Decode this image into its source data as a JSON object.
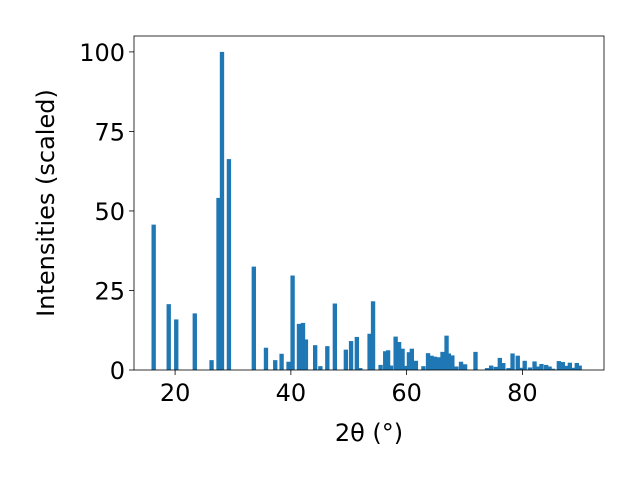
{
  "chart_data": {
    "type": "bar",
    "xlabel": "2θ (°)",
    "ylabel": "Intensities (scaled)",
    "xlim": [
      12.9,
      94.1
    ],
    "ylim": [
      0,
      105
    ],
    "xticks": [
      20,
      40,
      60,
      80
    ],
    "yticks": [
      0,
      25,
      50,
      75,
      100
    ],
    "grid": false,
    "bar_color": "#1f77b4",
    "bar_width": 0.75,
    "x": [
      16.3,
      18.9,
      20.2,
      23.4,
      26.3,
      27.5,
      28.1,
      29.3,
      33.6,
      35.7,
      37.3,
      38.4,
      39.6,
      40.3,
      41.4,
      42.1,
      42.6,
      44.2,
      45.1,
      46.3,
      47.6,
      49.5,
      50.4,
      51.4,
      52.0,
      53.6,
      54.2,
      55.5,
      56.3,
      56.8,
      57.3,
      58.1,
      58.7,
      59.3,
      59.8,
      60.4,
      60.9,
      61.6,
      62.9,
      63.7,
      64.3,
      64.9,
      65.6,
      66.2,
      66.9,
      67.3,
      67.9,
      68.6,
      69.4,
      70.1,
      71.9,
      73.9,
      74.6,
      75.4,
      76.1,
      76.7,
      77.6,
      78.3,
      79.2,
      79.7,
      80.4,
      81.3,
      82.1,
      82.6,
      83.3,
      84.1,
      84.7,
      85.3,
      86.3,
      87.0,
      87.6,
      88.2,
      88.8,
      89.4,
      89.9
    ],
    "values": [
      45.7,
      20.7,
      15.9,
      17.8,
      3.1,
      54.1,
      100,
      66.3,
      32.5,
      7.0,
      3.1,
      5.1,
      2.6,
      29.7,
      14.5,
      14.8,
      9.6,
      7.8,
      1.2,
      7.5,
      20.9,
      6.4,
      9.1,
      10.4,
      0.6,
      11.4,
      21.6,
      1.6,
      5.9,
      6.2,
      1.4,
      10.5,
      8.8,
      6.7,
      1.3,
      5.6,
      6.7,
      2.9,
      1.2,
      5.3,
      4.5,
      4.2,
      4.0,
      5.7,
      10.8,
      5.2,
      4.6,
      1.1,
      2.6,
      1.8,
      5.7,
      0.6,
      1.4,
      1.0,
      3.8,
      2.2,
      0.6,
      5.2,
      4.5,
      0.7,
      2.9,
      0.8,
      2.7,
      1.1,
      1.9,
      1.6,
      1.1,
      0.4,
      2.8,
      2.5,
      1.3,
      2.3,
      0.7,
      2.2,
      1.4
    ]
  }
}
